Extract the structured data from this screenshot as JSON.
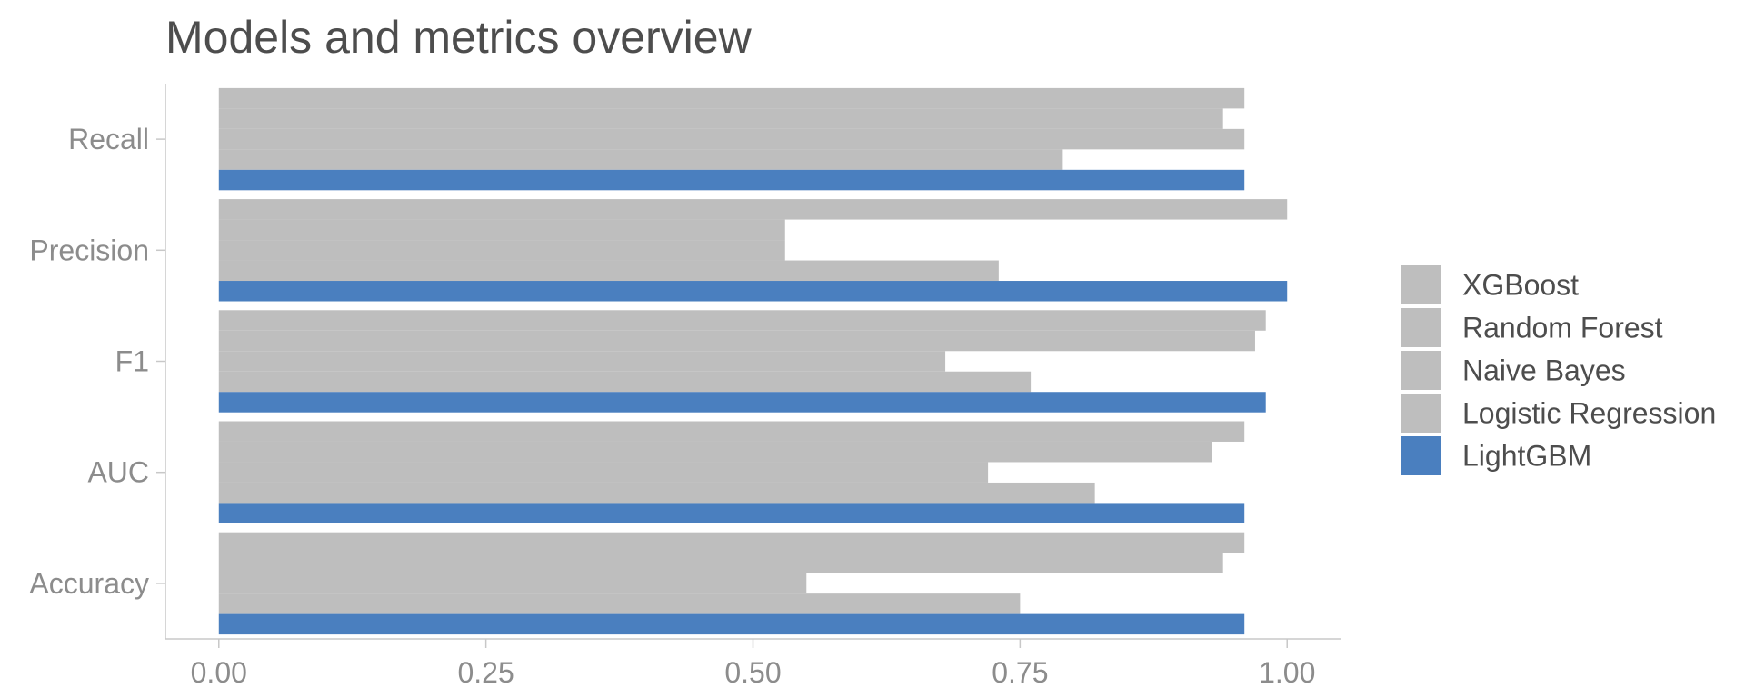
{
  "chart_data": {
    "type": "bar",
    "orientation": "horizontal",
    "title": "Models and metrics overview",
    "xlabel": "",
    "ylabel": "",
    "categories": [
      "Accuracy",
      "AUC",
      "F1",
      "Precision",
      "Recall"
    ],
    "series": [
      {
        "name": "XGBoost",
        "color": "#bebebe",
        "values": [
          0.96,
          0.96,
          0.98,
          1.0,
          0.96
        ]
      },
      {
        "name": "Random Forest",
        "color": "#bebebe",
        "values": [
          0.94,
          0.93,
          0.97,
          0.53,
          0.94
        ]
      },
      {
        "name": "Naive Bayes",
        "color": "#bebebe",
        "values": [
          0.55,
          0.72,
          0.68,
          0.53,
          0.96
        ]
      },
      {
        "name": "Logistic Regression",
        "color": "#bebebe",
        "values": [
          0.75,
          0.82,
          0.76,
          0.73,
          0.79
        ]
      },
      {
        "name": "LightGBM",
        "color": "#4a7fbf",
        "values": [
          0.96,
          0.96,
          0.98,
          1.0,
          0.96
        ]
      }
    ],
    "xlim": [
      -0.05,
      1.05
    ],
    "xticks": [
      0,
      0.25,
      0.5,
      0.75,
      1.0
    ],
    "xtick_labels": [
      "0.00",
      "0.25",
      "0.50",
      "0.75",
      "1.00"
    ],
    "grid": false,
    "legend_position": "right",
    "highlight_color": "#4a7fbf",
    "muted_color": "#bebebe"
  }
}
